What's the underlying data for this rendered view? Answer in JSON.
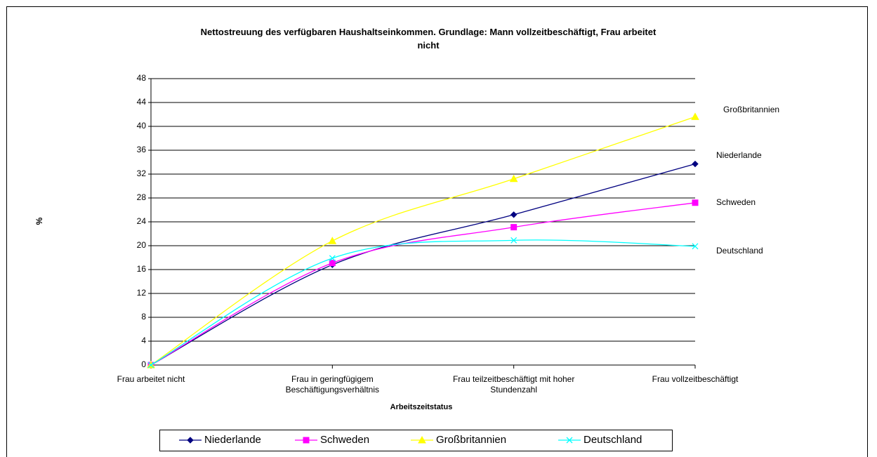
{
  "chart_data": {
    "type": "line",
    "title": "Nettostreuung des verfügbaren Haushaltseinkommen. Grundlage: Mann vollzeitbeschäftigt, Frau arbeitet\nnicht",
    "x_label": "Arbeitszeitstatus",
    "y_label": "%",
    "categories": [
      "Frau arbeitet nicht",
      "Frau in geringfügigem\nBeschäftigungsverhältnis",
      "Frau teilzeitbeschäftigt mit hoher\nStundenzahl",
      "Frau vollzeitbeschäftigt"
    ],
    "series": [
      {
        "name": "Niederlande",
        "color": "#000080",
        "marker": "diamond",
        "values": [
          0,
          16.8,
          25.2,
          33.7
        ]
      },
      {
        "name": "Schweden",
        "color": "#ff00ff",
        "marker": "square",
        "values": [
          0,
          17.1,
          23.1,
          27.2
        ]
      },
      {
        "name": "Großbritannien",
        "color": "#ffff00",
        "marker": "triangle",
        "values": [
          0,
          20.8,
          31.2,
          41.6
        ]
      },
      {
        "name": "Deutschland",
        "color": "#00ffff",
        "marker": "x",
        "values": [
          0,
          17.9,
          20.9,
          19.9
        ]
      }
    ],
    "ylim": [
      0,
      48
    ],
    "yticks": [
      0,
      4,
      8,
      12,
      16,
      20,
      24,
      28,
      32,
      36,
      40,
      44,
      48
    ],
    "grid": true,
    "smooth": true,
    "legend": "bottom"
  }
}
